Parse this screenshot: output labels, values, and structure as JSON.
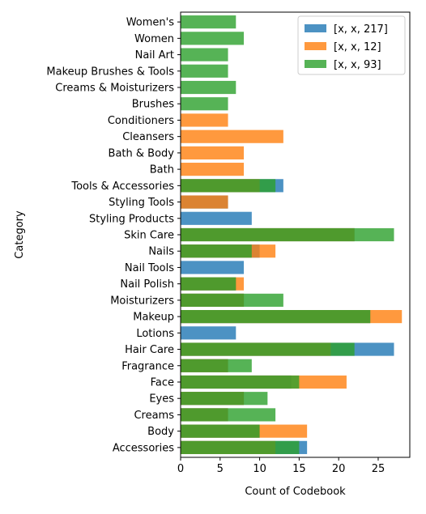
{
  "chart_data": {
    "type": "bar",
    "orientation": "horizontal",
    "title": "",
    "xlabel": "Count of Codebook",
    "ylabel": "Category",
    "xlim": [
      0,
      29
    ],
    "xticks": [
      0,
      5,
      10,
      15,
      20,
      25
    ],
    "grid": false,
    "legend_position": "top-right",
    "categories": [
      "Accessories",
      "Body",
      "Creams",
      "Eyes",
      "Face",
      "Fragrance",
      "Hair Care",
      "Lotions",
      "Makeup",
      "Moisturizers",
      "Nail Polish",
      "Nail Tools",
      "Nails",
      "Skin Care",
      "Styling Products",
      "Styling Tools",
      "Tools & Accessories",
      "Bath",
      "Bath & Body",
      "Cleansers",
      "Conditioners",
      "Brushes",
      "Creams & Moisturizers",
      "Makeup Brushes & Tools",
      "Nail Art",
      "Women",
      "Women's"
    ],
    "series": [
      {
        "name": "[x, x, 217]",
        "color": "#1f77b4",
        "values": [
          16,
          10,
          6,
          8,
          14,
          6,
          27,
          7,
          24,
          8,
          7,
          8,
          10,
          22,
          9,
          6,
          13,
          null,
          null,
          null,
          null,
          null,
          null,
          null,
          null,
          null,
          null
        ]
      },
      {
        "name": "[x, x, 12]",
        "color": "#ff7f0e",
        "values": [
          12,
          16,
          6,
          8,
          21,
          6,
          19,
          null,
          28,
          8,
          8,
          null,
          12,
          22,
          null,
          6,
          10,
          8,
          8,
          13,
          6,
          null,
          null,
          null,
          null,
          null,
          null
        ]
      },
      {
        "name": "[x, x, 93]",
        "color": "#2ca02c",
        "values": [
          15,
          10,
          12,
          11,
          15,
          9,
          22,
          null,
          24,
          13,
          7,
          null,
          9,
          27,
          null,
          null,
          12,
          null,
          null,
          null,
          null,
          6,
          7,
          6,
          6,
          8,
          7
        ]
      }
    ]
  }
}
